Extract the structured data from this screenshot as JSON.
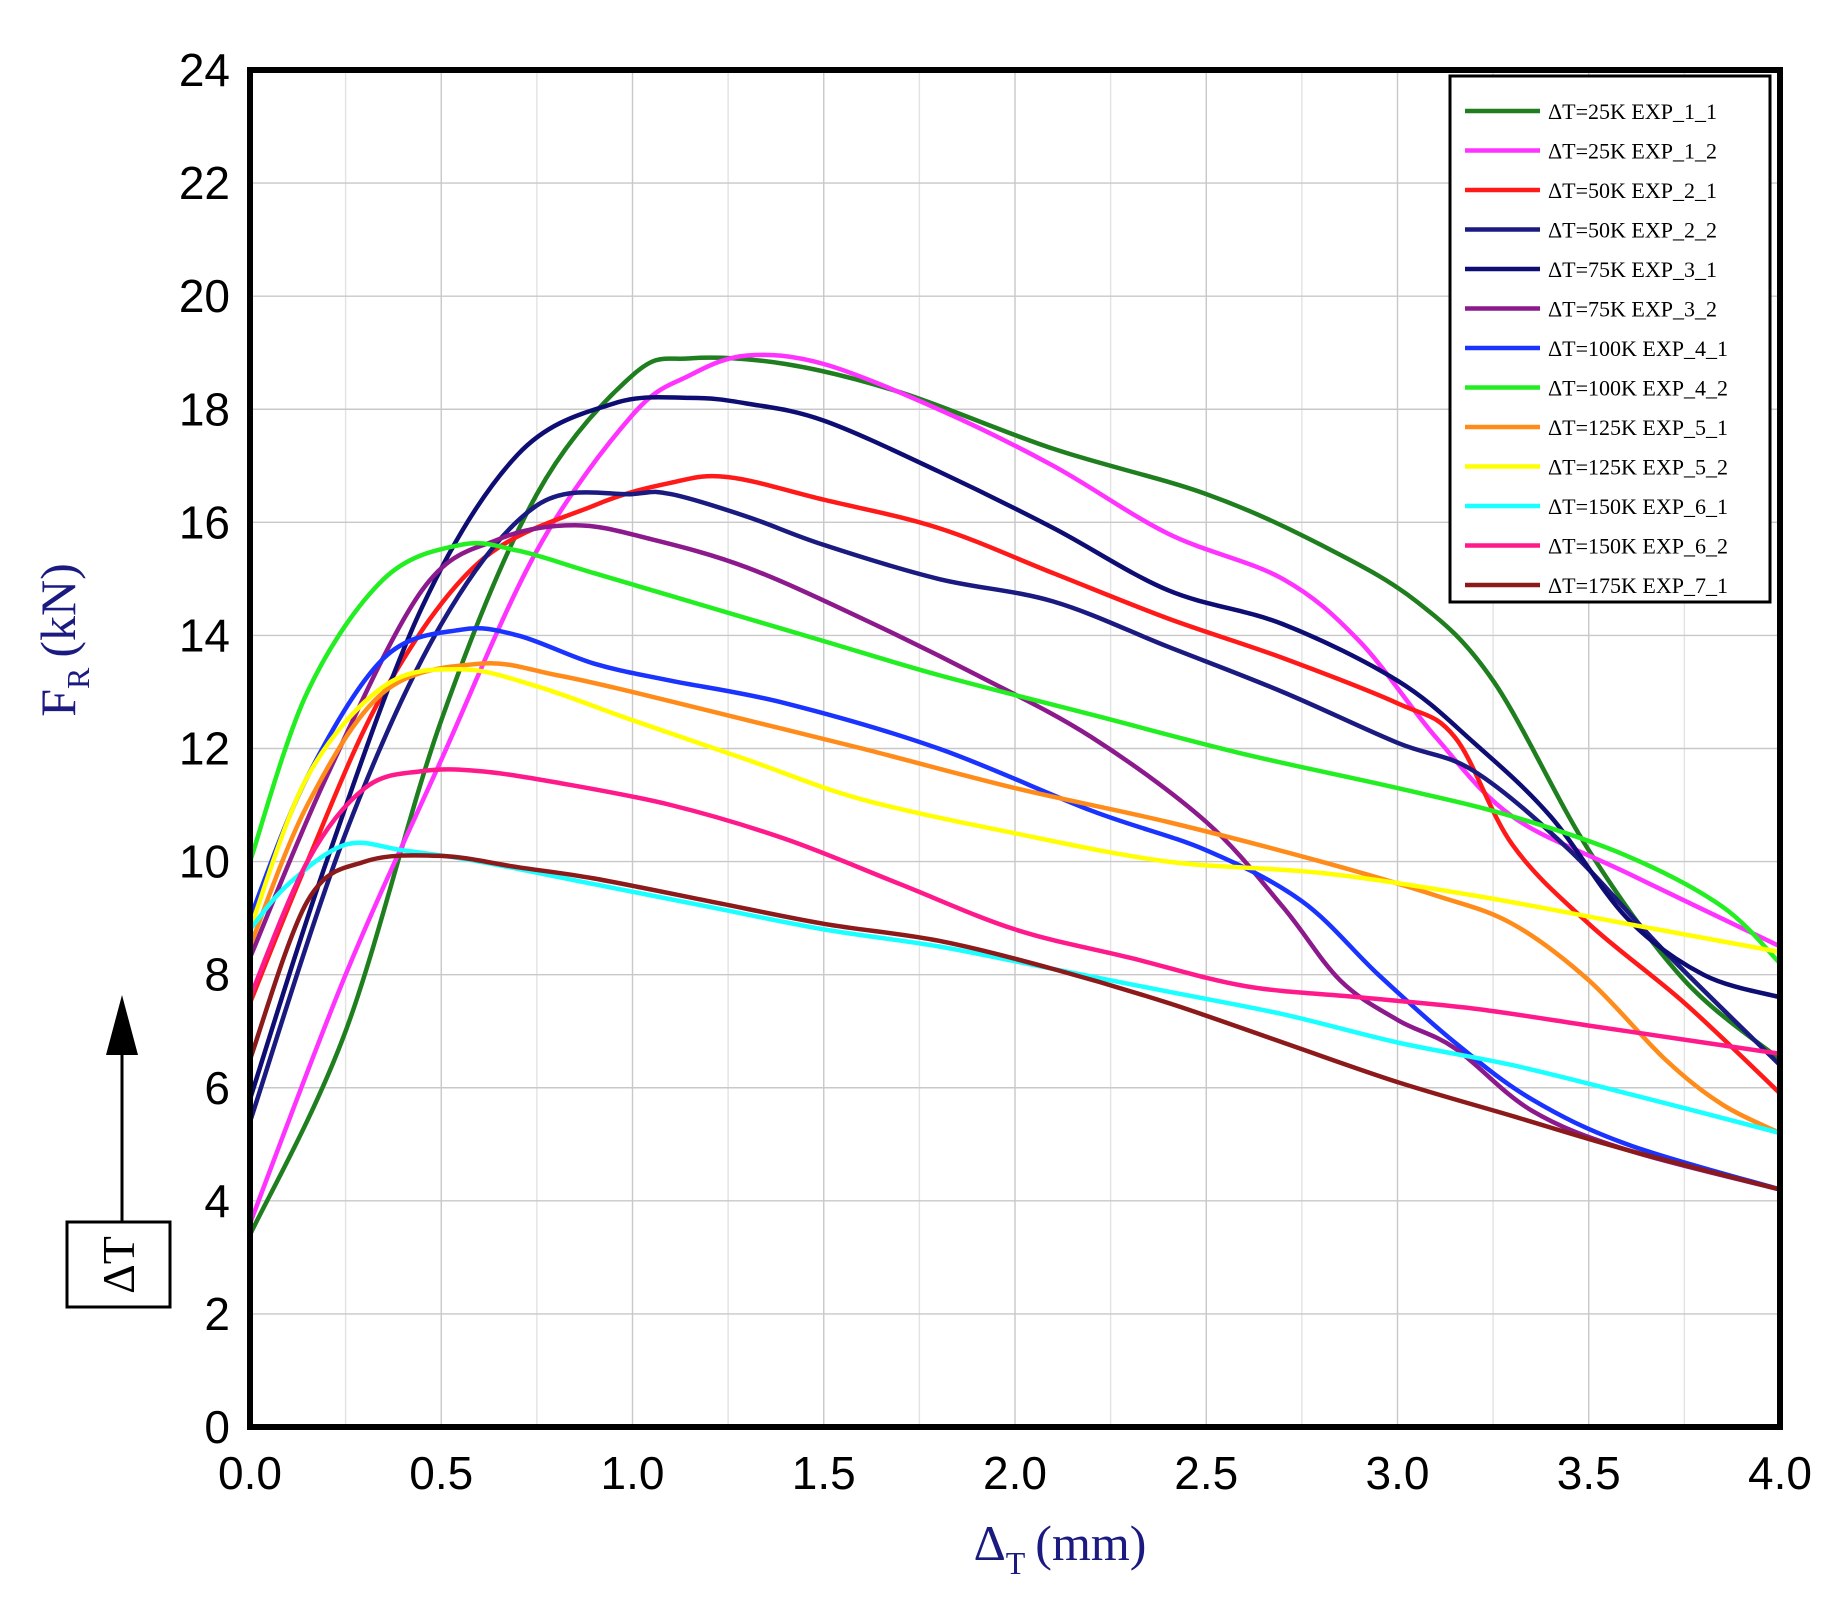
{
  "chart_data": {
    "type": "line",
    "title": "",
    "xlabel": {
      "symbol": "Δ",
      "subscript": "T",
      "unit": "(mm)"
    },
    "ylabel": {
      "symbol": "F",
      "subscript": "R",
      "unit": "(kN)"
    },
    "xlim": [
      0,
      4
    ],
    "ylim": [
      0,
      24
    ],
    "x_ticks": [
      "0.0",
      "0.5",
      "1.0",
      "1.5",
      "2.0",
      "2.5",
      "3.0",
      "3.5",
      "4.0"
    ],
    "y_ticks": [
      "0",
      "2",
      "4",
      "6",
      "8",
      "10",
      "12",
      "14",
      "16",
      "18",
      "20",
      "22",
      "24"
    ],
    "grid": true,
    "legend_position": "top-right",
    "annotation": {
      "label": "ΔT",
      "arrow": "up"
    },
    "series": [
      {
        "name": "ΔT=25K EXP_1_1",
        "color": "#1f7f1f",
        "x": [
          0,
          0.25,
          0.5,
          0.75,
          1.0,
          1.15,
          1.4,
          1.7,
          2.1,
          2.5,
          2.8,
          3.05,
          3.25,
          3.5,
          3.75,
          4.0
        ],
        "y": [
          3.4,
          7.0,
          12.5,
          16.5,
          18.6,
          18.9,
          18.8,
          18.3,
          17.3,
          16.5,
          15.6,
          14.6,
          13.2,
          10.2,
          7.9,
          6.5
        ]
      },
      {
        "name": "ΔT=25K EXP_1_2",
        "color": "#ff33ff",
        "x": [
          0,
          0.25,
          0.5,
          0.75,
          1.0,
          1.15,
          1.3,
          1.5,
          1.8,
          2.1,
          2.4,
          2.7,
          2.9,
          3.1,
          3.3,
          3.6,
          4.0
        ],
        "y": [
          3.6,
          8.0,
          11.8,
          15.5,
          17.9,
          18.6,
          18.95,
          18.8,
          18.0,
          17.0,
          15.8,
          15.0,
          13.9,
          12.2,
          10.8,
          9.8,
          8.5
        ]
      },
      {
        "name": "ΔT=50K EXP_2_1",
        "color": "#ff1a1a",
        "x": [
          0,
          0.15,
          0.35,
          0.6,
          0.9,
          1.1,
          1.25,
          1.5,
          1.8,
          2.1,
          2.4,
          2.7,
          3.0,
          3.15,
          3.3,
          3.5,
          3.75,
          4.0
        ],
        "y": [
          7.5,
          10.0,
          13.0,
          15.3,
          16.3,
          16.7,
          16.8,
          16.4,
          15.9,
          15.1,
          14.3,
          13.6,
          12.8,
          12.2,
          10.3,
          8.9,
          7.5,
          5.9
        ]
      },
      {
        "name": "ΔT=50K EXP_2_2",
        "color": "#1a1a80",
        "x": [
          0,
          0.25,
          0.5,
          0.75,
          1.0,
          1.1,
          1.3,
          1.5,
          1.8,
          2.1,
          2.4,
          2.7,
          3.0,
          3.2,
          3.45,
          3.7,
          4.0
        ],
        "y": [
          5.4,
          10.5,
          14.2,
          16.3,
          16.5,
          16.5,
          16.1,
          15.6,
          15.0,
          14.6,
          13.8,
          13.0,
          12.1,
          11.6,
          10.2,
          8.4,
          6.4
        ]
      },
      {
        "name": "ΔT=75K EXP_3_1",
        "color": "#0d0d73",
        "x": [
          0,
          0.2,
          0.45,
          0.7,
          0.95,
          1.15,
          1.3,
          1.5,
          1.8,
          2.1,
          2.4,
          2.7,
          3.0,
          3.2,
          3.4,
          3.6,
          3.8,
          4.0
        ],
        "y": [
          5.8,
          10.0,
          14.5,
          17.2,
          18.1,
          18.2,
          18.1,
          17.8,
          16.9,
          15.9,
          14.8,
          14.2,
          13.2,
          12.1,
          10.8,
          9.0,
          8.0,
          7.6
        ]
      },
      {
        "name": "ΔT=75K EXP_3_2",
        "color": "#8c1a8c",
        "x": [
          0,
          0.2,
          0.45,
          0.65,
          0.85,
          1.05,
          1.3,
          1.6,
          1.9,
          2.2,
          2.5,
          2.7,
          2.85,
          3.0,
          3.15,
          3.35,
          3.6,
          4.0
        ],
        "y": [
          8.3,
          11.5,
          14.8,
          15.7,
          15.95,
          15.7,
          15.2,
          14.3,
          13.3,
          12.2,
          10.7,
          9.2,
          7.9,
          7.2,
          6.7,
          5.6,
          4.9,
          4.2
        ]
      },
      {
        "name": "ΔT=100K EXP_4_1",
        "color": "#1a33ff",
        "x": [
          0,
          0.15,
          0.35,
          0.55,
          0.7,
          0.9,
          1.1,
          1.4,
          1.8,
          2.2,
          2.5,
          2.75,
          2.95,
          3.15,
          3.35,
          3.6,
          4.0
        ],
        "y": [
          9.0,
          11.5,
          13.6,
          14.1,
          14.0,
          13.5,
          13.2,
          12.8,
          12.0,
          10.9,
          10.2,
          9.3,
          8.0,
          6.8,
          5.8,
          5.0,
          4.2
        ]
      },
      {
        "name": "ΔT=100K EXP_4_2",
        "color": "#22ee22",
        "x": [
          0,
          0.15,
          0.35,
          0.55,
          0.7,
          0.9,
          1.2,
          1.5,
          1.8,
          2.2,
          2.6,
          3.0,
          3.3,
          3.6,
          3.85,
          4.0
        ],
        "y": [
          10.0,
          13.0,
          15.0,
          15.6,
          15.5,
          15.1,
          14.5,
          13.9,
          13.3,
          12.6,
          11.9,
          11.3,
          10.8,
          10.1,
          9.2,
          8.2
        ]
      },
      {
        "name": "ΔT=125K EXP_5_1",
        "color": "#ff8c1a",
        "x": [
          0,
          0.15,
          0.35,
          0.6,
          0.8,
          1.0,
          1.3,
          1.6,
          2.0,
          2.4,
          2.8,
          3.1,
          3.3,
          3.5,
          3.7,
          3.85,
          4.0
        ],
        "y": [
          8.5,
          11.0,
          13.0,
          13.5,
          13.3,
          13.0,
          12.5,
          12.0,
          11.3,
          10.7,
          10.0,
          9.4,
          8.9,
          7.9,
          6.5,
          5.7,
          5.2
        ]
      },
      {
        "name": "ΔT=125K EXP_5_2",
        "color": "#ffff00",
        "x": [
          0,
          0.15,
          0.35,
          0.55,
          0.75,
          1.0,
          1.3,
          1.6,
          2.0,
          2.4,
          2.8,
          3.2,
          3.6,
          4.0
        ],
        "y": [
          8.8,
          11.5,
          13.1,
          13.4,
          13.1,
          12.5,
          11.8,
          11.1,
          10.5,
          10.0,
          9.8,
          9.4,
          8.9,
          8.4
        ]
      },
      {
        "name": "ΔT=150K EXP_6_1",
        "color": "#1affff",
        "x": [
          0,
          0.1,
          0.25,
          0.4,
          0.6,
          0.9,
          1.2,
          1.5,
          1.8,
          2.1,
          2.4,
          2.7,
          3.0,
          3.3,
          3.6,
          4.0
        ],
        "y": [
          8.8,
          9.6,
          10.3,
          10.2,
          10.0,
          9.6,
          9.2,
          8.8,
          8.5,
          8.1,
          7.7,
          7.3,
          6.8,
          6.4,
          5.9,
          5.2
        ]
      },
      {
        "name": "ΔT=150K EXP_6_2",
        "color": "#ff1a8c",
        "x": [
          0,
          0.15,
          0.3,
          0.45,
          0.6,
          0.8,
          1.1,
          1.4,
          1.7,
          2.0,
          2.3,
          2.6,
          2.9,
          3.2,
          3.5,
          3.8,
          4.0
        ],
        "y": [
          7.6,
          10.0,
          11.3,
          11.6,
          11.6,
          11.4,
          11.0,
          10.4,
          9.6,
          8.8,
          8.3,
          7.8,
          7.6,
          7.4,
          7.1,
          6.8,
          6.6
        ]
      },
      {
        "name": "ΔT=175K EXP_7_1",
        "color": "#8c1a1a",
        "x": [
          0,
          0.15,
          0.3,
          0.5,
          0.7,
          0.9,
          1.2,
          1.5,
          1.8,
          2.1,
          2.4,
          2.7,
          3.0,
          3.3,
          3.6,
          4.0
        ],
        "y": [
          6.5,
          9.3,
          10.0,
          10.1,
          9.9,
          9.7,
          9.3,
          8.9,
          8.6,
          8.1,
          7.5,
          6.8,
          6.1,
          5.5,
          4.9,
          4.2
        ]
      }
    ]
  }
}
